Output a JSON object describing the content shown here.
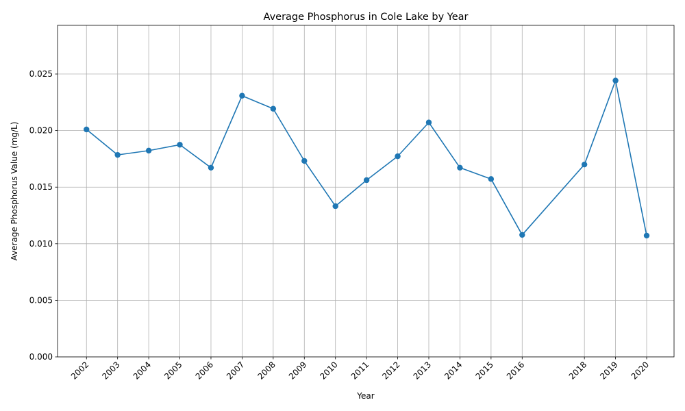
{
  "chart_data": {
    "type": "line",
    "title": "Average Phosphorus in Cole Lake by Year",
    "xlabel": "Year",
    "ylabel": "Average Phosphorus Value (mg/L)",
    "x": [
      2002,
      2003,
      2004,
      2005,
      2006,
      2007,
      2008,
      2009,
      2010,
      2011,
      2012,
      2013,
      2014,
      2015,
      2016,
      2018,
      2019,
      2020
    ],
    "y": [
      0.0201,
      0.01785,
      0.01823,
      0.01875,
      0.01672,
      0.02308,
      0.02193,
      0.01732,
      0.01332,
      0.01562,
      0.01773,
      0.02072,
      0.01672,
      0.01572,
      0.01078,
      0.017,
      0.02442,
      0.01072
    ],
    "xticks": [
      "2002",
      "2003",
      "2004",
      "2005",
      "2006",
      "2007",
      "2008",
      "2009",
      "2010",
      "2011",
      "2012",
      "2013",
      "2014",
      "2015",
      "2016",
      "2018",
      "2019",
      "2020"
    ],
    "yticks": [
      "0.000",
      "0.005",
      "0.010",
      "0.015",
      "0.020",
      "0.025"
    ],
    "ylim": [
      0,
      0.0293
    ],
    "xlim": [
      2001.07,
      2020.88
    ],
    "grid": true,
    "line_color": "#1f77b4",
    "marker": "circle"
  }
}
